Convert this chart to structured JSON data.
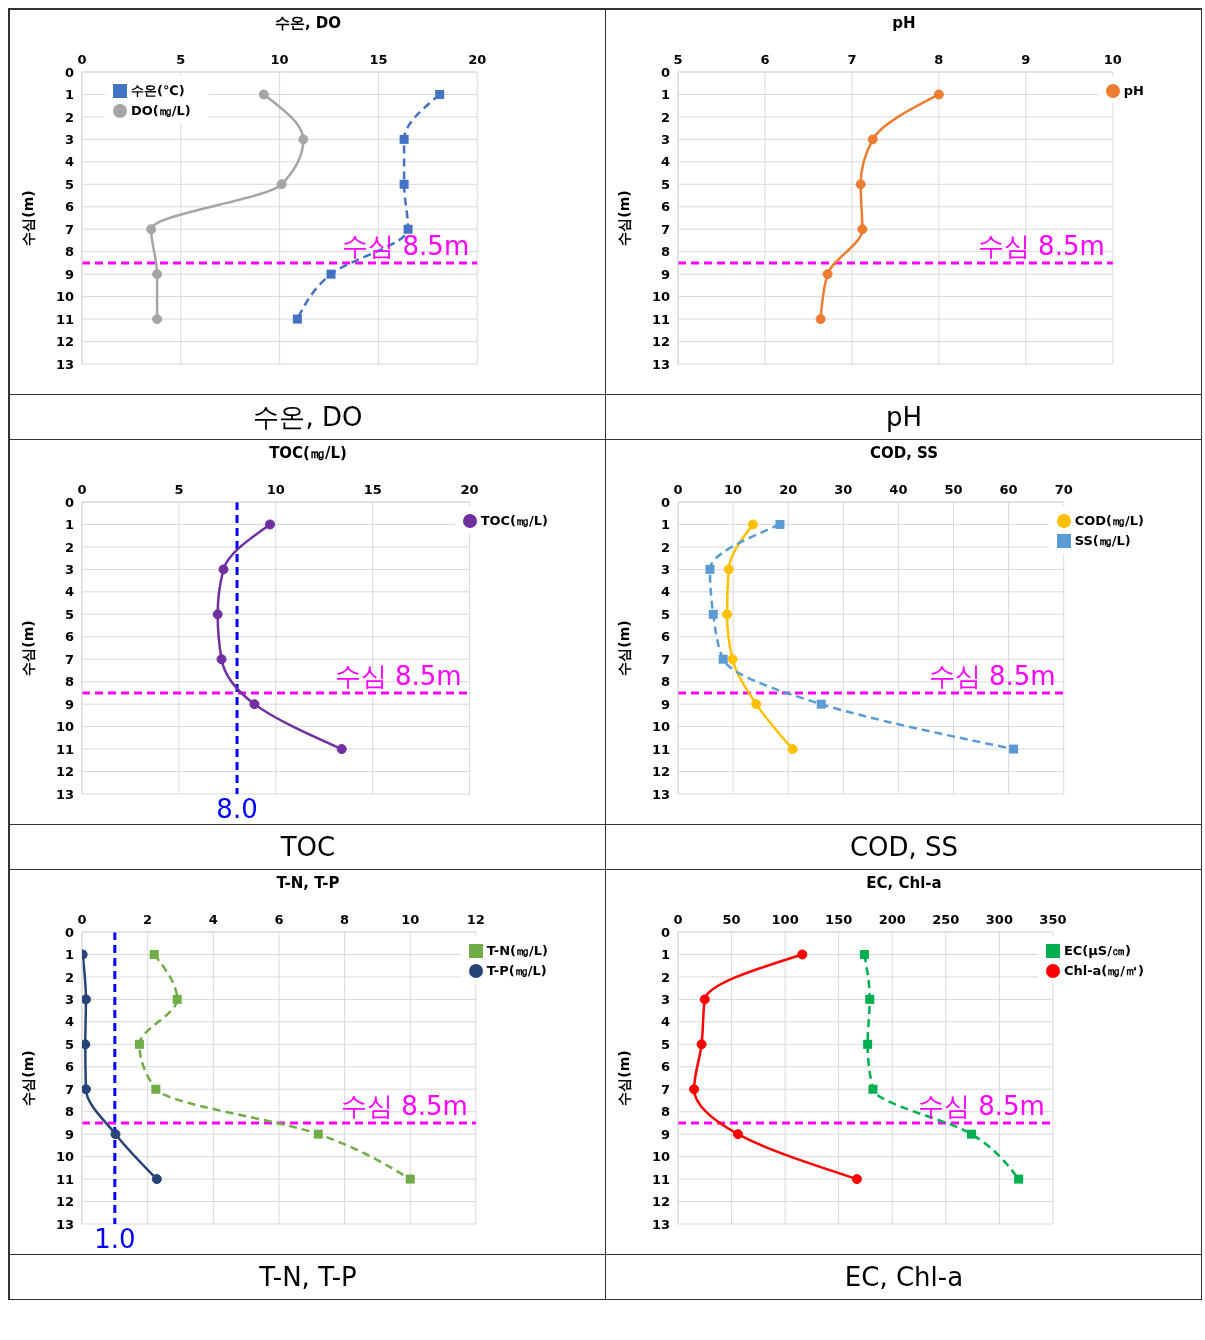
{
  "chart_data": [
    {
      "type": "line",
      "title": "수온, DO",
      "ylabel": "수심(m)",
      "xlim": [
        0,
        20
      ],
      "xticks": [
        0,
        5,
        10,
        15,
        20
      ],
      "ylim": [
        13,
        0
      ],
      "yticks": [
        0,
        1,
        2,
        3,
        4,
        5,
        6,
        7,
        8,
        9,
        10,
        11,
        12,
        13
      ],
      "grid": true,
      "legend": "top left",
      "series": [
        {
          "name": "수온(℃)",
          "color": "#4472c4",
          "marker": "square",
          "line_style": "dashed",
          "x": [
            18.1,
            16.3,
            16.3,
            16.5,
            12.6,
            10.9
          ],
          "values": [
            1,
            3,
            5,
            7,
            9,
            11
          ]
        },
        {
          "name": "DO(㎎/L)",
          "color": "#a5a5a5",
          "marker": "circle",
          "line_style": "solid",
          "x": [
            9.2,
            11.2,
            10.1,
            3.5,
            3.8,
            3.8
          ],
          "values": [
            1,
            3,
            5,
            7,
            9,
            11
          ]
        }
      ],
      "ref_lines": [
        {
          "axis": "y",
          "value": 8.5,
          "label": "수심 8.5m",
          "color": "#ff00ff",
          "line_style": "dashed"
        }
      ],
      "annotations": [
        "수온, DO"
      ]
    },
    {
      "type": "line",
      "title": "pH",
      "ylabel": "수심(m)",
      "xlim": [
        5,
        10
      ],
      "xticks": [
        5,
        6,
        7,
        8,
        9,
        10
      ],
      "ylim": [
        13,
        0
      ],
      "yticks": [
        0,
        1,
        2,
        3,
        4,
        5,
        6,
        7,
        8,
        9,
        10,
        11,
        12,
        13
      ],
      "grid": true,
      "legend": "top right",
      "series": [
        {
          "name": "pH",
          "color": "#ed7d31",
          "marker": "circle",
          "line_style": "solid",
          "x": [
            8.0,
            7.24,
            7.1,
            7.12,
            6.72,
            6.64
          ],
          "values": [
            1,
            3,
            5,
            7,
            9,
            11
          ]
        }
      ],
      "ref_lines": [
        {
          "axis": "y",
          "value": 8.5,
          "label": "수심 8.5m",
          "color": "#ff00ff",
          "line_style": "dashed"
        }
      ],
      "annotations": [
        "pH"
      ]
    },
    {
      "type": "line",
      "title": "TOC(㎎/L)",
      "ylabel": "수심(m)",
      "xlim": [
        0,
        20
      ],
      "xticks": [
        0,
        5,
        10,
        15,
        20
      ],
      "ylim": [
        13,
        0
      ],
      "yticks": [
        0,
        1,
        2,
        3,
        4,
        5,
        6,
        7,
        8,
        9,
        10,
        11,
        12,
        13
      ],
      "grid": true,
      "legend": "top right",
      "series": [
        {
          "name": "TOC(㎎/L)",
          "color": "#7030a0",
          "marker": "circle",
          "line_style": "solid",
          "x": [
            9.7,
            7.3,
            7.0,
            7.2,
            8.9,
            13.4
          ],
          "values": [
            1,
            3,
            5,
            7,
            9,
            11
          ]
        }
      ],
      "ref_lines": [
        {
          "axis": "y",
          "value": 8.5,
          "label": "수심 8.5m",
          "color": "#ff00ff",
          "line_style": "dashed"
        },
        {
          "axis": "x",
          "value": 8.0,
          "label": "8.0",
          "color": "#0000ff",
          "line_style": "dashed"
        }
      ],
      "annotations": [
        "TOC"
      ]
    },
    {
      "type": "line",
      "title": "COD, SS",
      "ylabel": "수심(m)",
      "xlim": [
        0,
        70
      ],
      "xticks": [
        0,
        10,
        20,
        30,
        40,
        50,
        60,
        70
      ],
      "ylim": [
        13,
        0
      ],
      "yticks": [
        0,
        1,
        2,
        3,
        4,
        5,
        6,
        7,
        8,
        9,
        10,
        11,
        12,
        13
      ],
      "grid": true,
      "legend": "top right",
      "series": [
        {
          "name": "COD(㎎/L)",
          "color": "#ffc000",
          "marker": "circle",
          "line_style": "solid",
          "x": [
            13.6,
            9.2,
            8.9,
            9.9,
            14.2,
            20.8
          ],
          "values": [
            1,
            3,
            5,
            7,
            9,
            11
          ]
        },
        {
          "name": "SS(㎎/L)",
          "color": "#5b9bd5",
          "marker": "square",
          "line_style": "dashed",
          "x": [
            18.5,
            5.8,
            6.4,
            8.2,
            26.0,
            60.9
          ],
          "values": [
            1,
            3,
            5,
            7,
            9,
            11
          ]
        }
      ],
      "ref_lines": [
        {
          "axis": "y",
          "value": 8.5,
          "label": "수심 8.5m",
          "color": "#ff00ff",
          "line_style": "dashed"
        }
      ],
      "annotations": [
        "COD, SS"
      ]
    },
    {
      "type": "line",
      "title": "T-N, T-P",
      "ylabel": "수심(m)",
      "xlim": [
        0,
        12
      ],
      "xticks": [
        0,
        2,
        4,
        6,
        8,
        10,
        12
      ],
      "ylim": [
        13,
        0
      ],
      "yticks": [
        0,
        1,
        2,
        3,
        4,
        5,
        6,
        7,
        8,
        9,
        10,
        11,
        12,
        13
      ],
      "grid": true,
      "legend": "top right",
      "series": [
        {
          "name": "T-N(㎎/L)",
          "color": "#70ad47",
          "marker": "square",
          "line_style": "dashed",
          "x": [
            2.2,
            2.9,
            1.75,
            2.25,
            7.2,
            10.0
          ],
          "values": [
            1,
            3,
            5,
            7,
            9,
            11
          ]
        },
        {
          "name": "T-P(㎎/L)",
          "color": "#264478",
          "marker": "circle",
          "line_style": "solid",
          "x": [
            0.02,
            0.12,
            0.1,
            0.12,
            1.02,
            2.28
          ],
          "values": [
            1,
            3,
            5,
            7,
            9,
            11
          ]
        }
      ],
      "ref_lines": [
        {
          "axis": "y",
          "value": 8.5,
          "label": "수심 8.5m",
          "color": "#ff00ff",
          "line_style": "dashed"
        },
        {
          "axis": "x",
          "value": 1.0,
          "label": "1.0",
          "color": "#0000ff",
          "line_style": "dashed"
        }
      ],
      "annotations": [
        "T-N, T-P"
      ]
    },
    {
      "type": "line",
      "title": "EC, Chl-a",
      "ylabel": "수심(m)",
      "xlim": [
        0,
        350
      ],
      "xticks": [
        0,
        50,
        100,
        150,
        200,
        250,
        300,
        350
      ],
      "ylim": [
        13,
        0
      ],
      "yticks": [
        0,
        1,
        2,
        3,
        4,
        5,
        6,
        7,
        8,
        9,
        10,
        11,
        12,
        13
      ],
      "grid": true,
      "legend": "top right",
      "series": [
        {
          "name": "EC(μS/㎝)",
          "color": "#00b050",
          "marker": "square",
          "line_style": "dashed",
          "x": [
            174,
            179,
            177,
            182,
            274,
            318
          ],
          "values": [
            1,
            3,
            5,
            7,
            9,
            11
          ]
        },
        {
          "name": "Chl-a(㎎/㎥)",
          "color": "#ff0000",
          "marker": "circle",
          "line_style": "solid",
          "x": [
            116,
            25,
            22,
            15,
            56,
            167
          ],
          "values": [
            1,
            3,
            5,
            7,
            9,
            11
          ]
        }
      ],
      "ref_lines": [
        {
          "axis": "y",
          "value": 8.5,
          "label": "수심 8.5m",
          "color": "#ff00ff",
          "line_style": "dashed"
        }
      ],
      "annotations": [
        "EC, Chl-a"
      ]
    }
  ]
}
